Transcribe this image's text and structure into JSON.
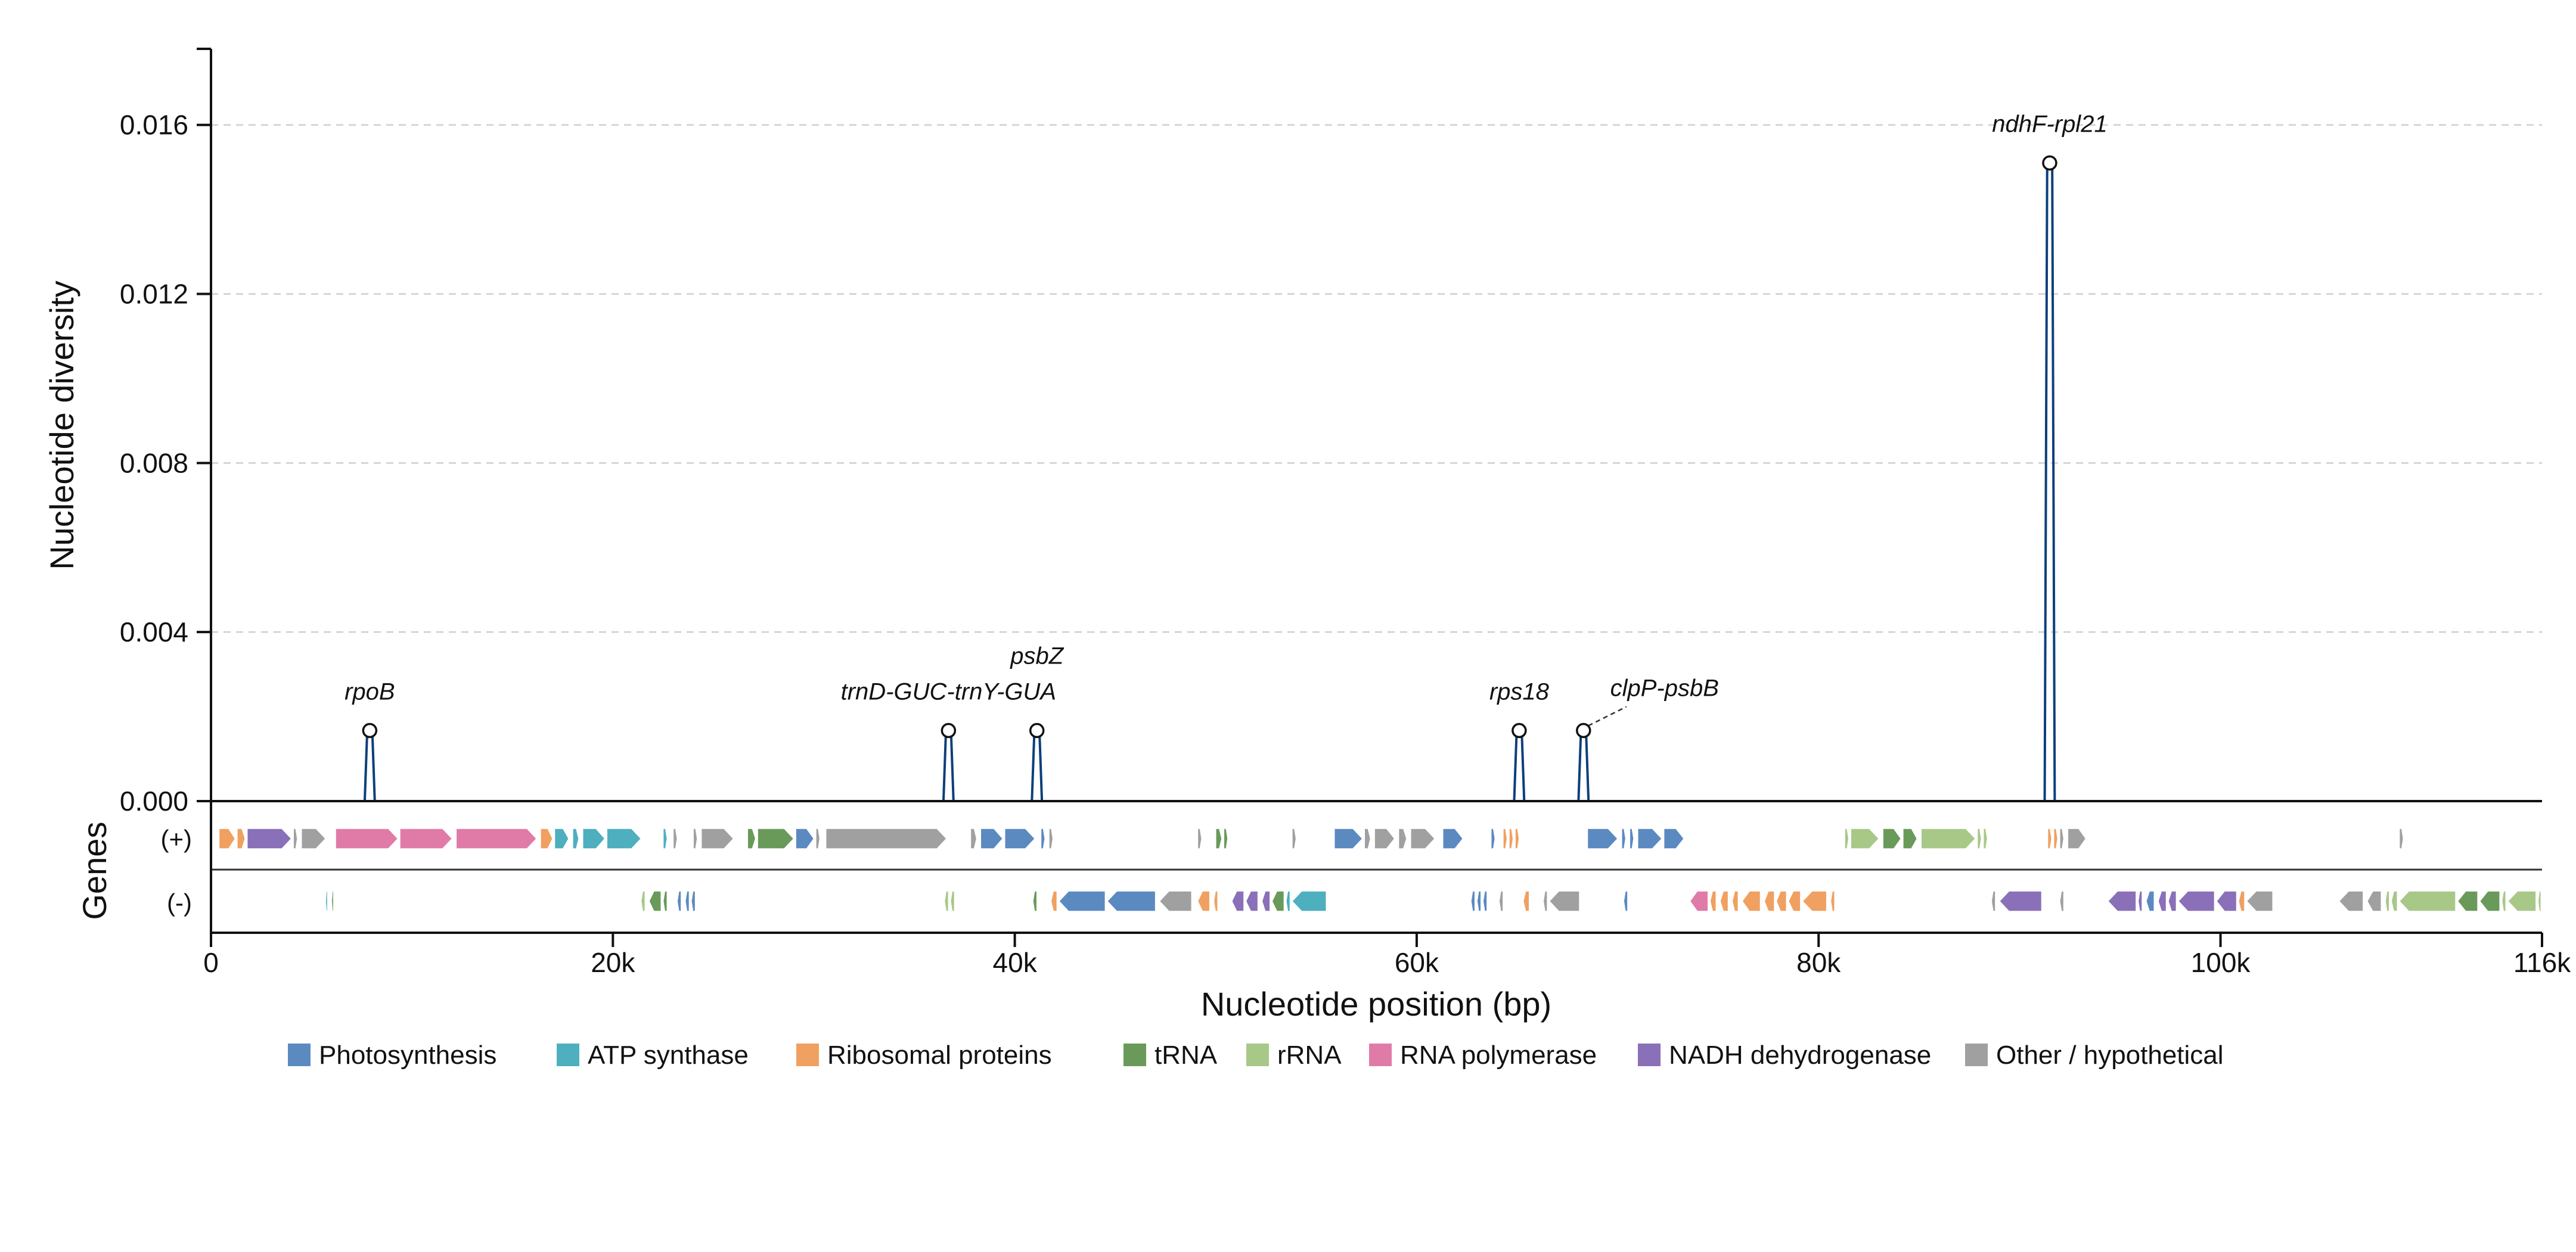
{
  "chart_data": {
    "type": "line",
    "ylabel": "Nucleotide diversity",
    "xlabel": "Nucleotide position (bp)",
    "gene_track_label": "Genes",
    "strand_labels": [
      "(+)",
      "(-)"
    ],
    "xlim": [
      0,
      116000
    ],
    "ylim": [
      0,
      0.0178
    ],
    "x_ticks": [
      0,
      20000,
      40000,
      60000,
      80000,
      100000,
      116000
    ],
    "x_tick_labels": [
      "0",
      "20k",
      "40k",
      "60k",
      "80k",
      "100k",
      "116k"
    ],
    "y_ticks": [
      0,
      0.004,
      0.008,
      0.012,
      0.016
    ],
    "y_tick_labels": [
      "0.000",
      "0.004",
      "0.008",
      "0.012",
      "0.016"
    ],
    "grid": "horizontal dashed",
    "legend_position": "bottom-center",
    "line_color": "#0d3f7a",
    "peaks": [
      {
        "x": 7900,
        "y": 0.00167,
        "label": "rpoB"
      },
      {
        "x": 36700,
        "y": 0.00167,
        "label": "trnD-GUC-trnY-GUA"
      },
      {
        "x": 41100,
        "y": 0.00167,
        "label": "psbZ"
      },
      {
        "x": 65100,
        "y": 0.00167,
        "label": "rps18"
      },
      {
        "x": 68300,
        "y": 0.00167,
        "label": "clpP-psbB"
      },
      {
        "x": 91500,
        "y": 0.0151,
        "label": "ndhF-rpl21"
      }
    ],
    "legend": [
      {
        "name": "Photosynthesis",
        "color": "#5b8ac1"
      },
      {
        "name": "ATP synthase",
        "color": "#4eafbf"
      },
      {
        "name": "Ribosomal proteins",
        "color": "#f0a060"
      },
      {
        "name": "tRNA",
        "color": "#6a9a5a"
      },
      {
        "name": "rRNA",
        "color": "#a8c888"
      },
      {
        "name": "RNA polymerase",
        "color": "#e07ba8"
      },
      {
        "name": "NADH dehydrogenase",
        "color": "#8a70b8"
      },
      {
        "name": "Other / hypothetical",
        "color": "#a0a0a0"
      }
    ],
    "genes_plus": [
      [
        400,
        1200,
        "ribo"
      ],
      [
        1300,
        1700,
        "ribo"
      ],
      [
        1800,
        4000,
        "ndh"
      ],
      [
        4100,
        4300,
        "other"
      ],
      [
        4500,
        5700,
        "other"
      ],
      [
        6200,
        9300,
        "rnap"
      ],
      [
        9400,
        12000,
        "rnap"
      ],
      [
        12200,
        16200,
        "rnap"
      ],
      [
        16400,
        17000,
        "ribo"
      ],
      [
        17100,
        17800,
        "atp"
      ],
      [
        18000,
        18300,
        "atp"
      ],
      [
        18500,
        19600,
        "atp"
      ],
      [
        19700,
        21400,
        "atp"
      ],
      [
        22500,
        22700,
        "atp"
      ],
      [
        23000,
        23200,
        "other"
      ],
      [
        24000,
        24200,
        "other"
      ],
      [
        24400,
        26000,
        "other"
      ],
      [
        26700,
        27100,
        "trna"
      ],
      [
        27200,
        29000,
        "trna"
      ],
      [
        29100,
        30000,
        "photo"
      ],
      [
        30100,
        30300,
        "other"
      ],
      [
        30600,
        36600,
        "other"
      ],
      [
        37800,
        38100,
        "other"
      ],
      [
        38300,
        39400,
        "photo"
      ],
      [
        39500,
        41000,
        "photo"
      ],
      [
        41300,
        41500,
        "photo"
      ],
      [
        41700,
        41900,
        "other"
      ],
      [
        49100,
        49300,
        "other"
      ],
      [
        50000,
        50300,
        "trna"
      ],
      [
        50400,
        50600,
        "trna"
      ],
      [
        53800,
        54000,
        "other"
      ],
      [
        55900,
        57300,
        "photo"
      ],
      [
        57400,
        57700,
        "other"
      ],
      [
        57900,
        58900,
        "other"
      ],
      [
        59100,
        59500,
        "other"
      ],
      [
        59700,
        60900,
        "other"
      ],
      [
        61300,
        62300,
        "photo"
      ],
      [
        63700,
        63900,
        "photo"
      ],
      [
        64300,
        64500,
        "ribo"
      ],
      [
        64600,
        64800,
        "ribo"
      ],
      [
        64900,
        65100,
        "ribo"
      ],
      [
        68500,
        70000,
        "photo"
      ],
      [
        70200,
        70400,
        "photo"
      ],
      [
        70600,
        70800,
        "photo"
      ],
      [
        71000,
        72200,
        "photo"
      ],
      [
        72300,
        73300,
        "photo"
      ],
      [
        81300,
        81500,
        "rrna"
      ],
      [
        81600,
        83000,
        "rrna"
      ],
      [
        83200,
        84100,
        "trna"
      ],
      [
        84200,
        84900,
        "trna"
      ],
      [
        85100,
        87800,
        "rrna"
      ],
      [
        87900,
        88100,
        "rrna"
      ],
      [
        88200,
        88400,
        "rrna"
      ],
      [
        91400,
        91600,
        "ribo"
      ],
      [
        91700,
        91900,
        "ribo"
      ],
      [
        92000,
        92200,
        "other"
      ],
      [
        92400,
        93300,
        "other"
      ],
      [
        108900,
        109100,
        "other"
      ]
    ],
    "genes_minus": [
      [
        5700,
        5800,
        "atp"
      ],
      [
        6000,
        6100,
        "trna"
      ],
      [
        21400,
        21600,
        "rrna"
      ],
      [
        21800,
        22400,
        "trna"
      ],
      [
        22500,
        22700,
        "trna"
      ],
      [
        23200,
        23400,
        "photo"
      ],
      [
        23600,
        23800,
        "photo"
      ],
      [
        23900,
        24100,
        "photo"
      ],
      [
        36500,
        36700,
        "rrna"
      ],
      [
        36800,
        37000,
        "rrna"
      ],
      [
        40900,
        41100,
        "trna"
      ],
      [
        41800,
        42100,
        "ribo"
      ],
      [
        42200,
        44500,
        "photo"
      ],
      [
        44600,
        47000,
        "photo"
      ],
      [
        47200,
        48800,
        "other"
      ],
      [
        49100,
        49700,
        "ribo"
      ],
      [
        49900,
        50100,
        "ribo"
      ],
      [
        50800,
        51400,
        "ndh"
      ],
      [
        51500,
        52100,
        "ndh"
      ],
      [
        52300,
        52700,
        "ndh"
      ],
      [
        52800,
        53400,
        "trna"
      ],
      [
        53500,
        53700,
        "atp"
      ],
      [
        53800,
        55500,
        "atp"
      ],
      [
        62700,
        62900,
        "photo"
      ],
      [
        63000,
        63200,
        "photo"
      ],
      [
        63300,
        63500,
        "photo"
      ],
      [
        64100,
        64300,
        "other"
      ],
      [
        65300,
        65600,
        "ribo"
      ],
      [
        66300,
        66500,
        "other"
      ],
      [
        66600,
        68100,
        "other"
      ],
      [
        70300,
        70500,
        "photo"
      ],
      [
        73600,
        74500,
        "rnap"
      ],
      [
        74600,
        74900,
        "ribo"
      ],
      [
        75100,
        75500,
        "ribo"
      ],
      [
        75700,
        76000,
        "ribo"
      ],
      [
        76200,
        77100,
        "ribo"
      ],
      [
        77300,
        77800,
        "ribo"
      ],
      [
        77900,
        78400,
        "ribo"
      ],
      [
        78500,
        79100,
        "ribo"
      ],
      [
        79200,
        80400,
        "ribo"
      ],
      [
        80600,
        80800,
        "ribo"
      ],
      [
        88600,
        88800,
        "other"
      ],
      [
        89000,
        91100,
        "ndh"
      ],
      [
        92000,
        92200,
        "other"
      ],
      [
        94400,
        95800,
        "ndh"
      ],
      [
        95900,
        96100,
        "ndh"
      ],
      [
        96300,
        96700,
        "photo"
      ],
      [
        96900,
        97300,
        "ndh"
      ],
      [
        97400,
        97800,
        "ndh"
      ],
      [
        97900,
        99700,
        "ndh"
      ],
      [
        99800,
        100800,
        "ndh"
      ],
      [
        100900,
        101200,
        "ribo"
      ],
      [
        101300,
        102600,
        "other"
      ],
      [
        105900,
        107100,
        "other"
      ],
      [
        107300,
        108000,
        "other"
      ],
      [
        108200,
        108400,
        "rrna"
      ],
      [
        108500,
        108800,
        "rrna"
      ],
      [
        108900,
        111700,
        "rrna"
      ],
      [
        111800,
        112800,
        "trna"
      ],
      [
        112900,
        113900,
        "trna"
      ],
      [
        114000,
        114200,
        "rrna"
      ],
      [
        114300,
        115700,
        "rrna"
      ],
      [
        115800,
        115950,
        "rrna"
      ]
    ]
  }
}
